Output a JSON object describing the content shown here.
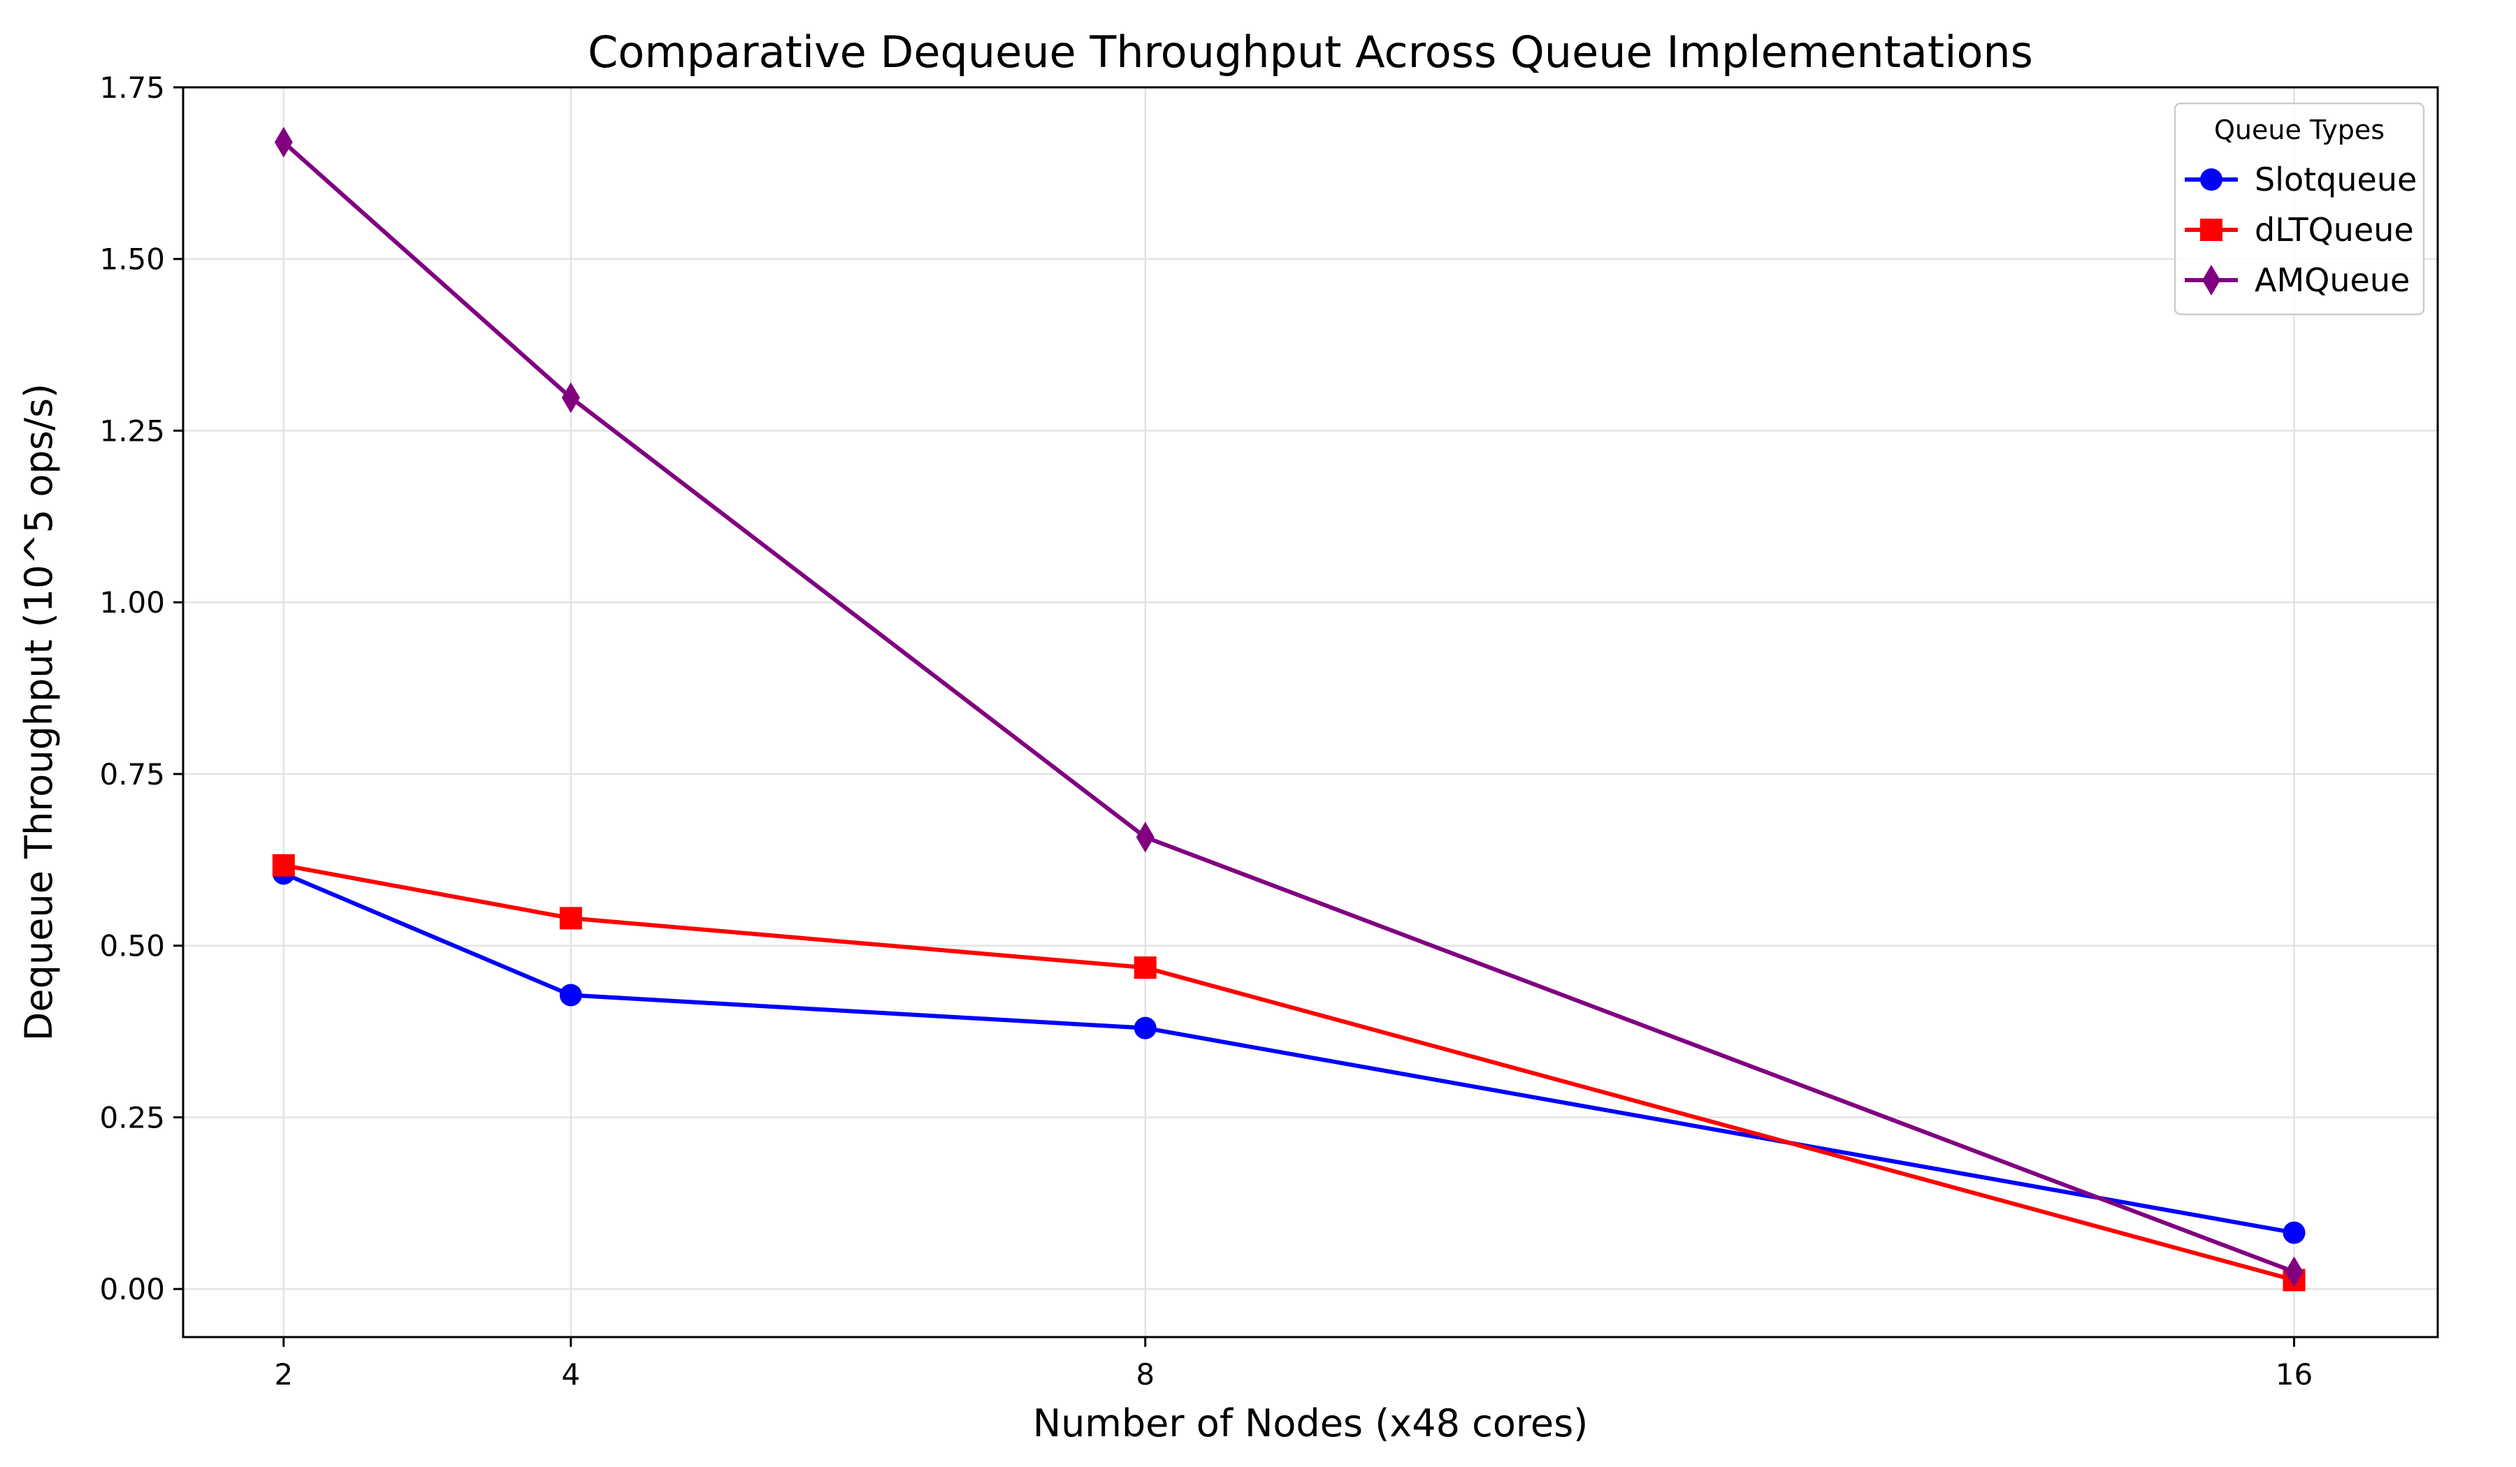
{
  "chart_data": {
    "type": "line",
    "title": "Comparative Dequeue Throughput Across Queue Implementations",
    "xlabel": "Number of Nodes (x48 cores)",
    "ylabel": "Dequeue Throughput (10^5 ops/s)",
    "x": [
      2,
      4,
      8,
      16
    ],
    "x_tick_labels": [
      "2",
      "4",
      "8",
      "16"
    ],
    "xlim": [
      1.3,
      17.0
    ],
    "ylim": [
      -0.07,
      1.75
    ],
    "y_ticks": [
      0,
      0.25,
      0.5,
      0.75,
      1.0,
      1.25,
      1.5,
      1.75
    ],
    "y_tick_labels": [
      "0.00",
      "0.25",
      "0.50",
      "0.75",
      "1.00",
      "1.25",
      "1.50",
      "1.75"
    ],
    "grid": true,
    "legend": {
      "title": "Queue Types",
      "placement": "top-right"
    },
    "series": [
      {
        "name": "Slotqueue",
        "values": [
          0.605,
          0.428,
          0.38,
          0.082
        ],
        "color": "#0000ff",
        "marker": "circle"
      },
      {
        "name": "dLTQueue",
        "values": [
          0.617,
          0.54,
          0.468,
          0.013
        ],
        "color": "#ff0000",
        "marker": "square"
      },
      {
        "name": "AMQueue",
        "values": [
          1.67,
          1.298,
          0.658,
          0.025
        ],
        "color": "#800080",
        "marker": "diamond"
      }
    ]
  }
}
